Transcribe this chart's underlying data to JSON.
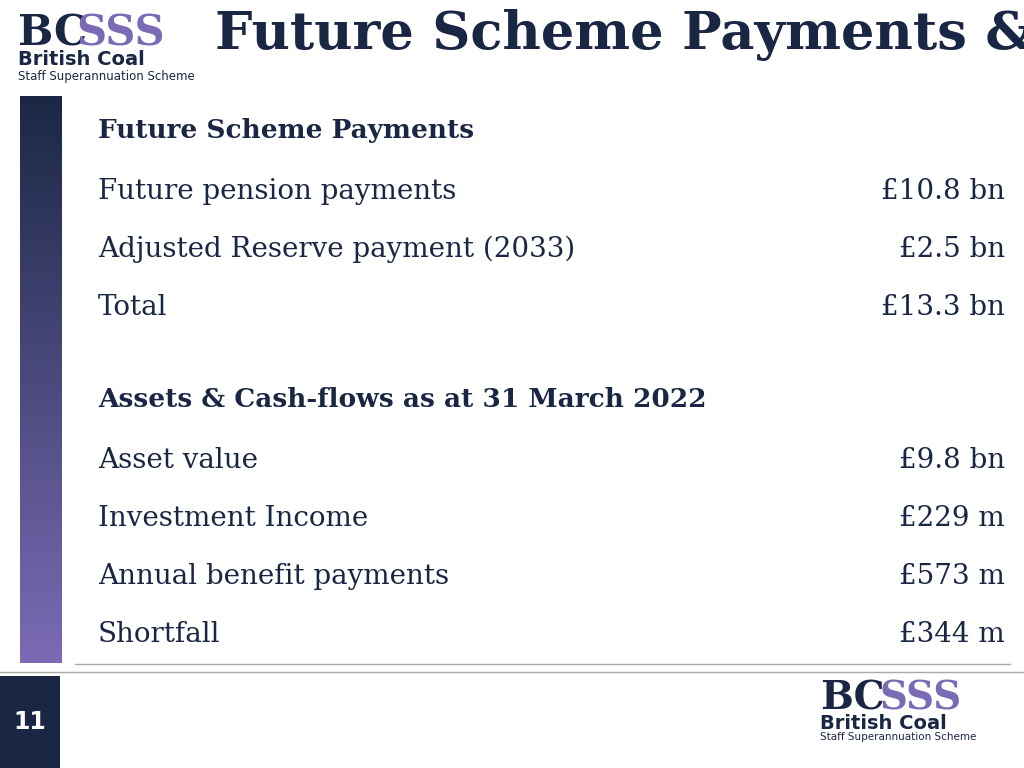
{
  "title": "Future Scheme Payments & Cash-flows",
  "bc_color": "#1a2744",
  "sss_color": "#7b6bb5",
  "section1_heading": "Future Scheme Payments",
  "section1_rows": [
    [
      "Future pension payments",
      "£10.8 bn"
    ],
    [
      "Adjusted Reserve payment (2033)",
      "£2.5 bn"
    ],
    [
      "Total",
      "£13.3 bn"
    ]
  ],
  "section2_heading": "Assets & Cash-flows as at 31 March 2022",
  "section2_rows": [
    [
      "Asset value",
      "£9.8 bn"
    ],
    [
      "Investment Income",
      "£229 m"
    ],
    [
      "Annual benefit payments",
      "£573 m"
    ],
    [
      "Shortfall",
      "£344 m"
    ]
  ],
  "slide_number": "11",
  "bar_top_color": "#1a2744",
  "bar_bottom_color": "#7b6bb5",
  "background_color": "#ffffff",
  "text_color": "#1a2744",
  "heading_fontsize": 19,
  "row_fontsize": 20,
  "title_fontsize": 38,
  "logo_bc_text": "BC",
  "logo_sss_text": "SSS",
  "logo_sub1": "British Coal",
  "logo_sub2": "Staff Superannuation Scheme"
}
